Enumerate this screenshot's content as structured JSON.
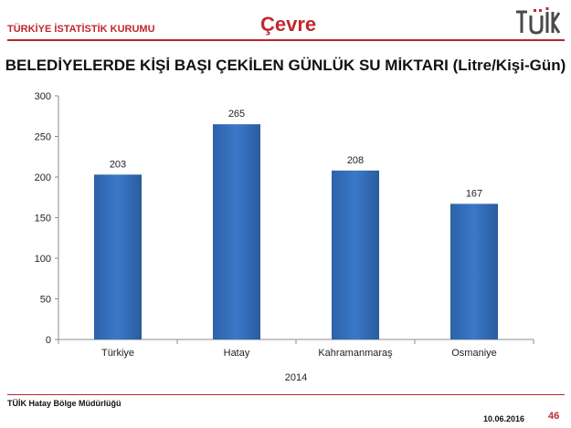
{
  "header": {
    "org_name": "TÜRKİYE İSTATİSTİK KURUMU",
    "section": "Çevre",
    "logo_text": "TÜİK"
  },
  "colors": {
    "accent": "#c0282e",
    "bar": "#3a78c8"
  },
  "chart_data": {
    "type": "bar",
    "title": "BELEDİYELERDE KİŞİ BAŞI ÇEKİLEN GÜNLÜK SU MİKTARI (Litre/Kişi-Gün)",
    "categories": [
      "Türkiye",
      "Hatay",
      "Kahramanmaraş",
      "Osmaniye"
    ],
    "values": [
      203,
      265,
      208,
      167
    ],
    "data_labels": [
      "203",
      "265",
      "208",
      "167"
    ],
    "xlabel": "2014",
    "ylabel": "",
    "ylim": [
      0,
      300
    ],
    "yticks": [
      0,
      50,
      100,
      150,
      200,
      250,
      300
    ],
    "grid": false,
    "legend": "none"
  },
  "footer": {
    "org": "TÜİK Hatay Bölge Müdürlüğü",
    "date": "10.06.2016",
    "page": "46"
  }
}
